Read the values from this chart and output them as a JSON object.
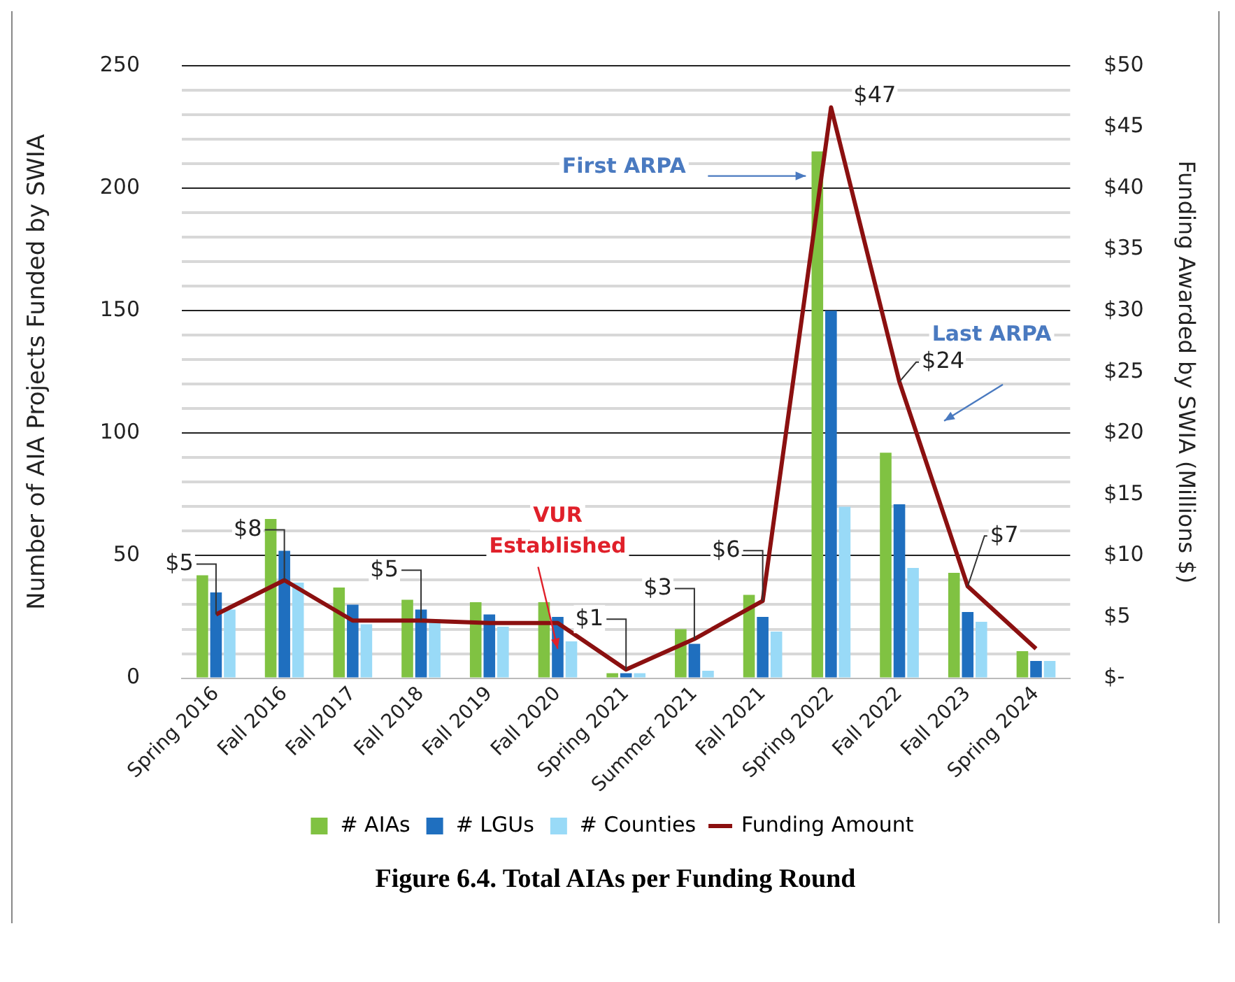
{
  "chart_data": {
    "type": "bar",
    "xlabel": null,
    "ylabel": "Number of AIA Projects Funded by SWIA",
    "y2label": "Funding Awarded by SWIA (Millions $)",
    "categories": [
      "Spring 2016",
      "Fall 2016",
      "Fall 2017",
      "Fall 2018",
      "Fall 2019",
      "Fall 2020",
      "Spring 2021",
      "Summer 2021",
      "Fall 2021",
      "Spring 2022",
      "Fall 2022",
      "Fall 2023",
      "Spring 2024"
    ],
    "series": [
      {
        "name": "# AIAs",
        "color": "#80c242",
        "values": [
          42,
          65,
          37,
          32,
          31,
          31,
          2,
          20,
          34,
          215,
          92,
          43,
          11
        ]
      },
      {
        "name": "# LGUs",
        "color": "#1f6fbf",
        "values": [
          35,
          52,
          30,
          28,
          26,
          25,
          2,
          14,
          25,
          150,
          71,
          27,
          7
        ]
      },
      {
        "name": "# Counties",
        "color": "#99daf7",
        "values": [
          28,
          39,
          22,
          24,
          21,
          15,
          2,
          3,
          19,
          70,
          45,
          23,
          7
        ]
      },
      {
        "name": "Funding Amount",
        "type": "line",
        "axis": "y2",
        "color": "#8b1010",
        "marker": "none",
        "line_style": "solid",
        "values": [
          5.2,
          8,
          4.7,
          4.7,
          4.5,
          4.5,
          0.7,
          3.2,
          6.3,
          46.6,
          24.2,
          7.5,
          2.4
        ],
        "value_labels": [
          "$5",
          "$8",
          null,
          "$5",
          null,
          null,
          "$1",
          "$3",
          "$6",
          "$47",
          "$24",
          "$7",
          null
        ]
      }
    ],
    "ylim": [
      0,
      250
    ],
    "yticks": [
      0,
      {
        "value": 10,
        "label": null
      },
      {
        "value": 20,
        "label": null
      },
      {
        "value": 30,
        "label": null
      },
      {
        "value": 40,
        "label": null
      },
      50,
      {
        "value": 60,
        "label": null
      },
      {
        "value": 70,
        "label": null
      },
      {
        "value": 80,
        "label": null
      },
      {
        "value": 90,
        "label": null
      },
      100,
      {
        "value": 110,
        "label": null
      },
      {
        "value": 120,
        "label": null
      },
      {
        "value": 130,
        "label": null
      },
      {
        "value": 140,
        "label": null
      },
      150,
      {
        "value": 160,
        "label": null
      },
      {
        "value": 170,
        "label": null
      },
      {
        "value": 180,
        "label": null
      },
      {
        "value": 190,
        "label": null
      },
      200,
      {
        "value": 210,
        "label": null
      },
      {
        "value": 220,
        "label": null
      },
      {
        "value": 230,
        "label": null
      },
      {
        "value": 240,
        "label": null
      },
      250
    ],
    "y2lim": [
      0,
      50
    ],
    "y2ticks": [
      {
        "value": 0,
        "label": "$-"
      },
      {
        "value": 5,
        "label": "$5"
      },
      {
        "value": 10,
        "label": "$10"
      },
      {
        "value": 15,
        "label": "$15"
      },
      {
        "value": 20,
        "label": "$20"
      },
      {
        "value": 25,
        "label": "$25"
      },
      {
        "value": 30,
        "label": "$30"
      },
      {
        "value": 35,
        "label": "$35"
      },
      {
        "value": 40,
        "label": "$40"
      },
      {
        "value": 45,
        "label": "$45"
      },
      {
        "value": 50,
        "label": "$50"
      }
    ],
    "grid": "y",
    "legend": "bottom",
    "annotations": [
      "First ARPA",
      "Last ARPA",
      {
        "text": "VUR Established",
        "x": "Fall 2020",
        "y": 12
      },
      "Figure 6.4. Total AIAs per Funding Round"
    ]
  }
}
